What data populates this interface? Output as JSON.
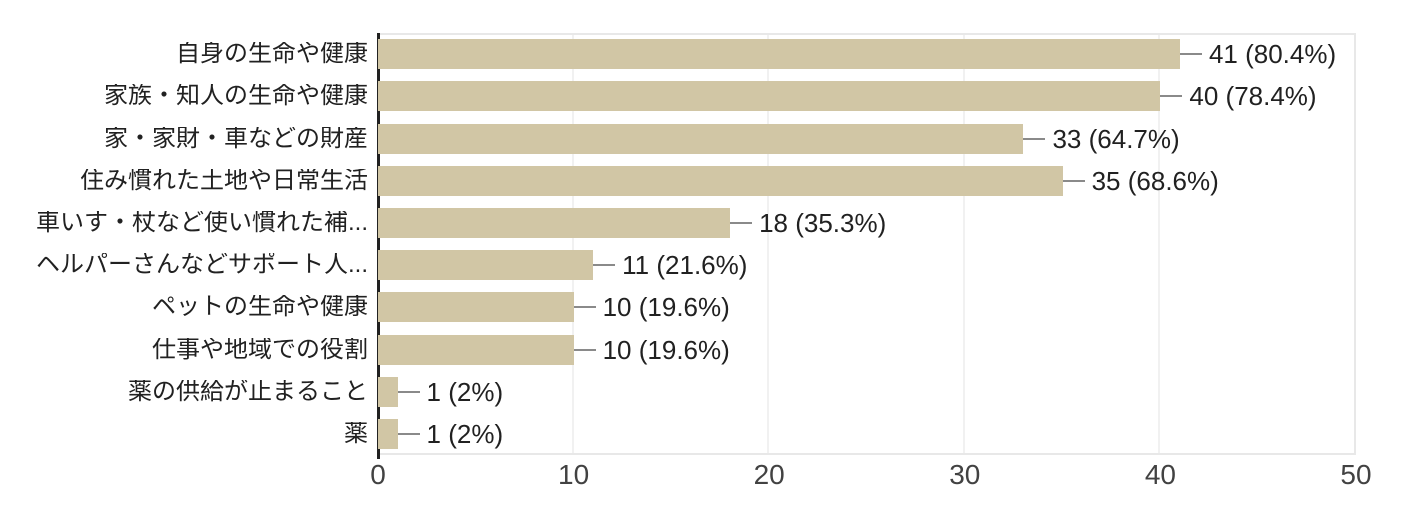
{
  "chart_data": {
    "type": "bar",
    "orientation": "horizontal",
    "title": "",
    "xlabel": "",
    "ylabel": "",
    "categories": [
      "自身の生命や健康",
      "家族・知人の生命や健康",
      "家・家財・車などの財産",
      "住み慣れた土地や日常生活",
      "車いす・杖など使い慣れた補...",
      "ヘルパーさんなどサポート人...",
      "ペットの生命や健康",
      "仕事や地域での役割",
      "薬の供給が止まること",
      "薬"
    ],
    "values": [
      41,
      40,
      33,
      35,
      18,
      11,
      10,
      10,
      1,
      1
    ],
    "value_labels": [
      "41 (80.4%)",
      "40 (78.4%)",
      "33 (64.7%)",
      "35 (68.6%)",
      "18 (35.3%)",
      "11 (21.6%)",
      "10 (19.6%)",
      "10 (19.6%)",
      "1 (2%)",
      "1 (2%)"
    ],
    "x_ticks": [
      0,
      10,
      20,
      30,
      40,
      50
    ],
    "xlim": [
      0,
      50
    ],
    "grid": true,
    "legend": "none",
    "colors": {
      "bar": "#d1c6a5",
      "axis": "#212121",
      "gridline": "#f1f1f1",
      "frame": "#e8e8e8",
      "connector": "#8a8a8a",
      "label": "#212121",
      "tick": "#424242",
      "background": "#ffffff"
    }
  }
}
